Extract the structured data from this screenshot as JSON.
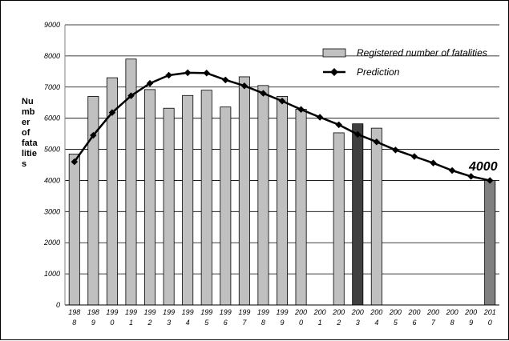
{
  "chart_data": {
    "type": "bar+line",
    "ylabel_lines": [
      "Nu",
      "mb",
      "er",
      "of",
      "fata",
      "litie",
      "s"
    ],
    "ylim": [
      0,
      9000
    ],
    "yticks": [
      "0",
      "1000",
      "2000",
      "3000",
      "4000",
      "5000",
      "6000",
      "7000",
      "8000",
      "9000"
    ],
    "categories": [
      "1988",
      "1989",
      "1990",
      "1991",
      "1992",
      "1993",
      "1994",
      "1995",
      "1996",
      "1997",
      "1998",
      "1999",
      "2000",
      "2001",
      "2002",
      "2003",
      "2004",
      "2005",
      "2006",
      "2007",
      "2008",
      "2009",
      "2010"
    ],
    "x_ticks": [
      {
        "top": "198",
        "bottom": "8"
      },
      {
        "top": "198",
        "bottom": "9"
      },
      {
        "top": "199",
        "bottom": "0"
      },
      {
        "top": "199",
        "bottom": "1"
      },
      {
        "top": "199",
        "bottom": "2"
      },
      {
        "top": "199",
        "bottom": "3"
      },
      {
        "top": "199",
        "bottom": "4"
      },
      {
        "top": "199",
        "bottom": "5"
      },
      {
        "top": "199",
        "bottom": "6"
      },
      {
        "top": "199",
        "bottom": "7"
      },
      {
        "top": "199",
        "bottom": "8"
      },
      {
        "top": "199",
        "bottom": "9"
      },
      {
        "top": "200",
        "bottom": "0"
      },
      {
        "top": "200",
        "bottom": "1"
      },
      {
        "top": "200",
        "bottom": "2"
      },
      {
        "top": "200",
        "bottom": "3"
      },
      {
        "top": "200",
        "bottom": "4"
      },
      {
        "top": "200",
        "bottom": "5"
      },
      {
        "top": "200",
        "bottom": "6"
      },
      {
        "top": "200",
        "bottom": "7"
      },
      {
        "top": "200",
        "bottom": "8"
      },
      {
        "top": "200",
        "bottom": "9"
      },
      {
        "top": "201",
        "bottom": "0"
      }
    ],
    "series": [
      {
        "name": "Registered number of fatalities",
        "kind": "bar",
        "color": "#c0c0c0",
        "values": [
          4850,
          6700,
          7300,
          7900,
          6920,
          6320,
          6730,
          6900,
          6360,
          7330,
          7050,
          6700,
          6290,
          null,
          5530,
          5820,
          5680,
          null,
          null,
          null,
          null,
          null,
          4000
        ],
        "bar_colors": {
          "15": "#404040",
          "22": "#808080"
        }
      },
      {
        "name": "Prediction",
        "kind": "line",
        "color": "#000000",
        "values": [
          4600,
          5450,
          6180,
          6720,
          7120,
          7380,
          7460,
          7450,
          7230,
          7040,
          6800,
          6550,
          6280,
          6030,
          5790,
          5480,
          5240,
          4980,
          4770,
          4560,
          4320,
          4130,
          4000
        ]
      }
    ],
    "annotations": [
      {
        "text": "4000"
      }
    ],
    "grid": true,
    "legend": "top-right"
  }
}
